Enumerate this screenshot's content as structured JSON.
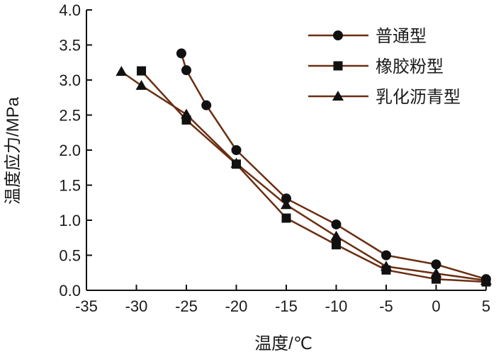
{
  "chart_data": {
    "type": "line",
    "xlabel": "温度/℃",
    "ylabel": "温度应力/MPa",
    "xlim": [
      -35,
      5
    ],
    "ylim": [
      0,
      4.0
    ],
    "xticks": [
      "-35",
      "-30",
      "-25",
      "-20",
      "-15",
      "-10",
      "-5",
      "0",
      "5"
    ],
    "yticks": [
      "0.0",
      "0.5",
      "1.0",
      "1.5",
      "2.0",
      "2.5",
      "3.0",
      "3.5",
      "4.0"
    ],
    "grid": false,
    "legend_position": "top-right",
    "line_color": "#6b2e12",
    "marker_color": "#111111",
    "series": [
      {
        "name": "普通型",
        "marker": "circle",
        "points": [
          [
            -25.5,
            3.38
          ],
          [
            -25,
            3.14
          ],
          [
            -23,
            2.64
          ],
          [
            -20,
            2.0
          ],
          [
            -15,
            1.31
          ],
          [
            -10,
            0.94
          ],
          [
            -5,
            0.5
          ],
          [
            0,
            0.37
          ],
          [
            5,
            0.16
          ]
        ]
      },
      {
        "name": "橡胶粉型",
        "marker": "square",
        "points": [
          [
            -29.5,
            3.13
          ],
          [
            -25,
            2.43
          ],
          [
            -20,
            1.8
          ],
          [
            -15,
            1.03
          ],
          [
            -10,
            0.65
          ],
          [
            -5,
            0.29
          ],
          [
            0,
            0.16
          ],
          [
            5,
            0.12
          ]
        ]
      },
      {
        "name": "乳化沥青型",
        "marker": "triangle",
        "points": [
          [
            -31.5,
            3.12
          ],
          [
            -29.5,
            2.92
          ],
          [
            -25,
            2.51
          ],
          [
            -20,
            1.81
          ],
          [
            -15,
            1.22
          ],
          [
            -10,
            0.77
          ],
          [
            -5,
            0.34
          ],
          [
            0,
            0.24
          ],
          [
            5,
            0.14
          ]
        ]
      }
    ]
  }
}
